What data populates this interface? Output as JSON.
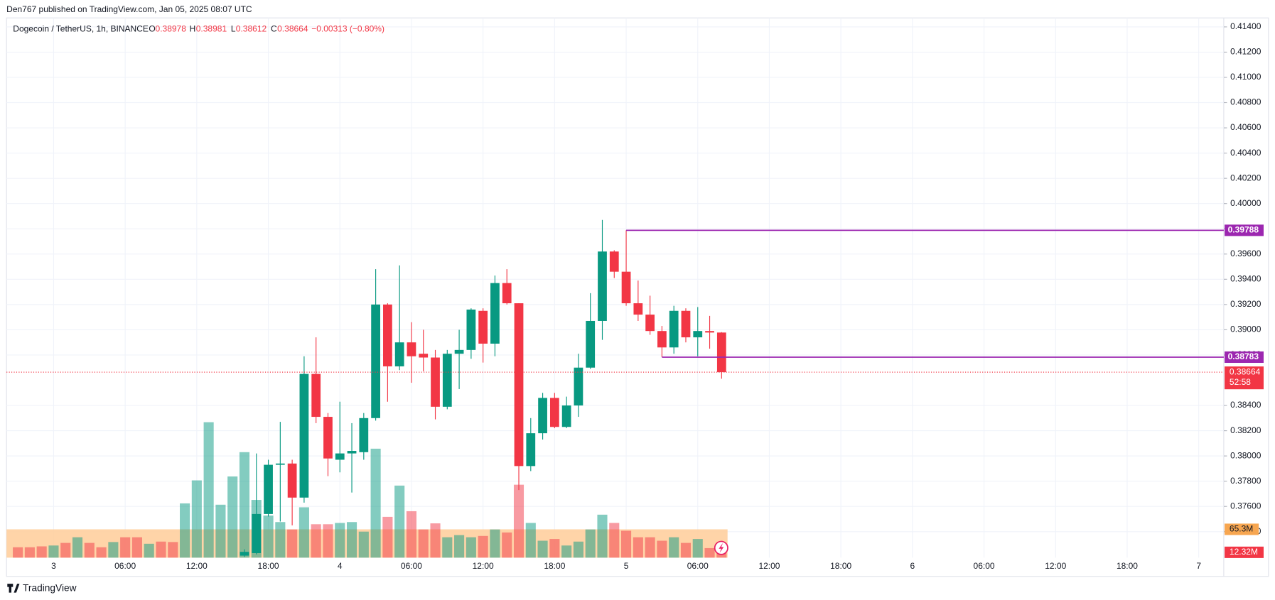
{
  "chart_data": {
    "type": "candlestick",
    "publisher": "Den767 published on TradingView.com, Jan 05, 2025 08:07 UTC",
    "symbol": "Dogecoin / TetherUS, 1h, BINANCE",
    "ohlc_letters": [
      "O",
      "H",
      "L",
      "C"
    ],
    "change": "−0.00313 (−0.80%)",
    "countdown": "52:58",
    "brand": "TradingView",
    "up_color": "#089981",
    "down_color": "#f23645",
    "grid": true,
    "xlim": [
      -3.95,
      98.1
    ],
    "ylim": [
      0.37194,
      0.41497
    ],
    "xticks": [
      {
        "value": 0,
        "label": "3"
      },
      {
        "value": 6,
        "label": "06:00"
      },
      {
        "value": 12,
        "label": "12:00"
      },
      {
        "value": 18,
        "label": "18:00"
      },
      {
        "value": 24,
        "label": "4"
      },
      {
        "value": 30,
        "label": "06:00"
      },
      {
        "value": 36,
        "label": "12:00"
      },
      {
        "value": 42,
        "label": "18:00"
      },
      {
        "value": 48,
        "label": "5"
      },
      {
        "value": 54,
        "label": "06:00"
      },
      {
        "value": 60,
        "label": "12:00"
      },
      {
        "value": 66,
        "label": "18:00"
      },
      {
        "value": 72,
        "label": "6"
      },
      {
        "value": 78,
        "label": "06:00"
      },
      {
        "value": 84,
        "label": "12:00"
      },
      {
        "value": 90,
        "label": "18:00"
      },
      {
        "value": 96,
        "label": "7"
      }
    ],
    "yticks": [
      {
        "value": 0.414,
        "label": "0.41400"
      },
      {
        "value": 0.412,
        "label": "0.41200"
      },
      {
        "value": 0.41,
        "label": "0.41000"
      },
      {
        "value": 0.408,
        "label": "0.40800"
      },
      {
        "value": 0.406,
        "label": "0.40600"
      },
      {
        "value": 0.404,
        "label": "0.40400"
      },
      {
        "value": 0.402,
        "label": "0.40200"
      },
      {
        "value": 0.4,
        "label": "0.40000"
      },
      {
        "value": 0.398,
        "label": "0.39800"
      },
      {
        "value": 0.396,
        "label": "0.39600"
      },
      {
        "value": 0.394,
        "label": "0.39400"
      },
      {
        "value": 0.392,
        "label": "0.39200"
      },
      {
        "value": 0.39,
        "label": "0.39000"
      },
      {
        "value": 0.388,
        "label": "0.38800"
      },
      {
        "value": 0.384,
        "label": "0.38400"
      },
      {
        "value": 0.382,
        "label": "0.38200"
      },
      {
        "value": 0.38,
        "label": "0.38000"
      },
      {
        "value": 0.378,
        "label": "0.37800"
      },
      {
        "value": 0.376,
        "label": "0.37600"
      },
      {
        "value": 0.374,
        "label": "0.37400"
      }
    ],
    "x": [
      16,
      17,
      18,
      19,
      20,
      21,
      22,
      23,
      24,
      25,
      26,
      27,
      28,
      29,
      30,
      31,
      32,
      33,
      34,
      35,
      36,
      37,
      38,
      39,
      40,
      41,
      42,
      43,
      44,
      45,
      46,
      47,
      48,
      49,
      50,
      51,
      52,
      53,
      54,
      55,
      56
    ],
    "open": [
      0.3721,
      0.3723,
      0.3754,
      0.3793,
      0.3794,
      0.3767,
      0.3865,
      0.3831,
      0.3797,
      0.3802,
      0.3803,
      0.383,
      0.392,
      0.3871,
      0.389,
      0.3881,
      0.3878,
      0.3839,
      0.3881,
      0.3884,
      0.3915,
      0.3889,
      0.3937,
      0.3921,
      0.3792,
      0.3818,
      0.3846,
      0.3823,
      0.384,
      0.387,
      0.3907,
      0.3962,
      0.3946,
      0.3921,
      0.3912,
      0.3899,
      0.3886,
      0.3915,
      0.3894,
      0.3899,
      0.38978
    ],
    "high": [
      0.3726,
      0.3802,
      0.3797,
      0.3827,
      0.3797,
      0.3879,
      0.3894,
      0.3834,
      0.3843,
      0.3826,
      0.3834,
      0.3948,
      0.3921,
      0.3951,
      0.3906,
      0.39,
      0.3884,
      0.3884,
      0.39,
      0.3917,
      0.3917,
      0.3943,
      0.3948,
      0.3921,
      0.383,
      0.385,
      0.385,
      0.3847,
      0.3881,
      0.3929,
      0.3987,
      0.3963,
      0.39788,
      0.3939,
      0.3927,
      0.3903,
      0.3919,
      0.3917,
      0.3918,
      0.3911,
      0.38981
    ],
    "low": [
      0.372,
      0.3722,
      0.3752,
      0.3748,
      0.3745,
      0.3763,
      0.3826,
      0.3784,
      0.3787,
      0.3771,
      0.3797,
      0.3828,
      0.3843,
      0.3868,
      0.3858,
      0.3867,
      0.3829,
      0.3837,
      0.3853,
      0.3877,
      0.3874,
      0.3879,
      0.392,
      0.3773,
      0.3788,
      0.3813,
      0.3822,
      0.3822,
      0.3831,
      0.3869,
      0.3892,
      0.3941,
      0.3919,
      0.3907,
      0.3896,
      0.38783,
      0.3881,
      0.389,
      0.3879,
      0.3885,
      0.38612
    ],
    "close": [
      0.3724,
      0.3754,
      0.3793,
      0.3794,
      0.3767,
      0.3865,
      0.3831,
      0.3798,
      0.3802,
      0.3804,
      0.383,
      0.392,
      0.3871,
      0.389,
      0.3879,
      0.3878,
      0.3839,
      0.3881,
      0.3884,
      0.3916,
      0.3889,
      0.3937,
      0.3921,
      0.3792,
      0.3818,
      0.3846,
      0.3823,
      0.384,
      0.387,
      0.3907,
      0.3962,
      0.3946,
      0.3921,
      0.3912,
      0.3899,
      0.3886,
      0.3915,
      0.3894,
      0.3899,
      0.38978,
      0.38664
    ],
    "levels": [
      {
        "value": 0.39788,
        "x": 48
      },
      {
        "value": 0.38783,
        "x": 51
      }
    ],
    "level_color": "#9c27b0",
    "volume": {
      "ylim": [
        0,
        360
      ],
      "x": [
        -3,
        -2,
        -1,
        0,
        1,
        2,
        3,
        4,
        5,
        6,
        7,
        8,
        9,
        10,
        11,
        12,
        13,
        14,
        15,
        16,
        17,
        18,
        19,
        20,
        21,
        22,
        23,
        24,
        25,
        26,
        27,
        28,
        29,
        30,
        31,
        32,
        33,
        34,
        35,
        36,
        37,
        38,
        39,
        40,
        41,
        42,
        43,
        44,
        45,
        46,
        47,
        48,
        49,
        50,
        51,
        52,
        53,
        54,
        55,
        56
      ],
      "values": [
        24,
        24,
        26,
        28,
        34,
        47,
        34,
        24,
        36,
        47,
        47,
        32,
        37,
        36,
        125,
        178,
        312,
        122,
        187,
        243,
        133,
        97,
        82,
        65,
        116,
        77,
        77,
        80,
        82,
        60,
        251,
        94,
        166,
        107,
        65,
        79,
        47,
        52,
        47,
        50,
        65,
        58,
        168,
        80,
        39,
        43,
        28,
        37,
        65,
        99,
        80,
        62,
        47,
        47,
        39,
        47,
        34,
        43,
        22,
        12.32
      ],
      "colors": [
        "#f2364580",
        "#f2364580",
        "#f2364580",
        "#08998180",
        "#f2364580",
        "#08998180",
        "#f2364580",
        "#f2364580",
        "#08998180",
        "#f2364580",
        "#f2364580",
        "#08998180",
        "#f2364580",
        "#f2364580",
        "#08998180",
        "#08998180",
        "#08998180",
        "#08998180",
        "#08998180",
        "#08998180",
        "#08998180",
        "#08998180",
        "#08998180",
        "#f2364580",
        "#08998180",
        "#f2364580",
        "#f2364580",
        "#08998180",
        "#08998180",
        "#08998180",
        "#08998180",
        "#f2364580",
        "#08998180",
        "#f2364580",
        "#f2364580",
        "#f2364580",
        "#08998180",
        "#08998180",
        "#08998180",
        "#f2364580",
        "#08998180",
        "#f2364580",
        "#f2364580",
        "#08998180",
        "#08998180",
        "#f2364580",
        "#08998180",
        "#08998180",
        "#08998180",
        "#08998180",
        "#f2364580",
        "#f2364580",
        "#f2364580",
        "#f2364580",
        "#f2364580",
        "#08998180",
        "#f2364580",
        "#08998180",
        "#f2364580",
        "#f2364580"
      ],
      "last_value_label": "12.32M",
      "ma": 65.3,
      "ma_label": "65.3M",
      "ma_color": "#ffcc99"
    }
  }
}
